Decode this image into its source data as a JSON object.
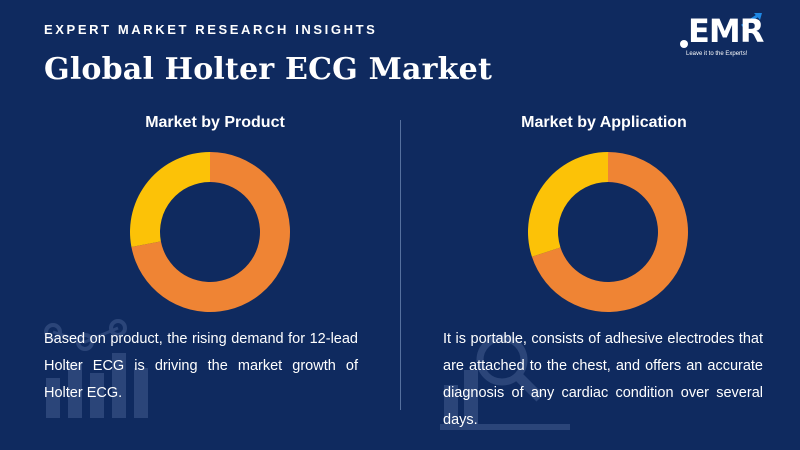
{
  "header": {
    "eyebrow": "EXPERT MARKET RESEARCH INSIGHTS",
    "title": "Global Holter ECG Market"
  },
  "logo": {
    "text": "EMR",
    "tagline": "Leave it to the Experts!"
  },
  "colors": {
    "background": "#0f2a5f",
    "orange": "#ef8434",
    "yellow": "#fcc207",
    "text": "#ffffff"
  },
  "panels": [
    {
      "title": "Market by Product",
      "text": "Based on product, the rising demand for 12-lead Holter ECG is driving the market growth of Holter ECG."
    },
    {
      "title": "Market by Application",
      "text": "It is portable, consists of adhesive electrodes that are attached to the chest, and offers an accurate diagnosis of any cardiac condition over several days."
    }
  ],
  "chart_data": [
    {
      "type": "pie",
      "title": "Market by Product",
      "values": [
        72,
        28
      ],
      "colors": [
        "#ef8434",
        "#fcc207"
      ]
    },
    {
      "type": "pie",
      "title": "Market by Application",
      "values": [
        70,
        30
      ],
      "colors": [
        "#ef8434",
        "#fcc207"
      ]
    }
  ]
}
